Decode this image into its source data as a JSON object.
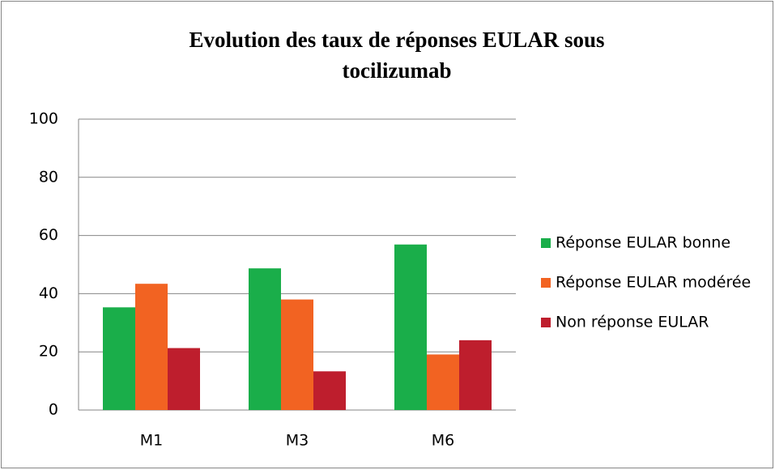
{
  "chart_data": {
    "type": "bar",
    "title": [
      "Evolution des taux de réponses EULAR sous",
      "tocilizumab"
    ],
    "categories": [
      "M1",
      "M3",
      "M6"
    ],
    "series": [
      {
        "name": "Réponse EULAR bonne",
        "color": "#1aae4a",
        "values": [
          35.3,
          48.7,
          56.9
        ]
      },
      {
        "name": "Réponse EULAR modérée",
        "color": "#f26322",
        "values": [
          43.4,
          38,
          19.1
        ]
      },
      {
        "name": "Non réponse EULAR",
        "color": "#be1e2d",
        "values": [
          21.3,
          13.3,
          24
        ]
      }
    ],
    "ylim": [
      0,
      100
    ],
    "yticks": [
      0,
      20,
      40,
      60,
      80,
      100
    ],
    "grid": true,
    "legend": "right"
  }
}
